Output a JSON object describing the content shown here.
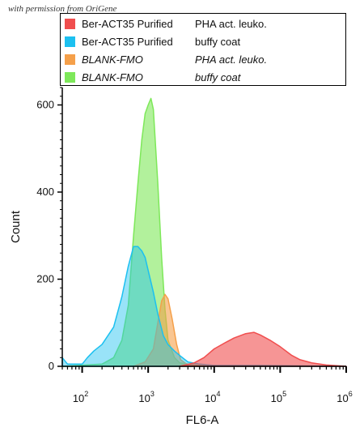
{
  "watermark": "with permission from OriGene",
  "legend": [
    {
      "sample": "Ber-ACT35  Purified",
      "condition": "PHA act. leuko.",
      "italic": false,
      "color": "#f04e4e"
    },
    {
      "sample": "Ber-ACT35  Purified",
      "condition": "buffy coat",
      "italic": false,
      "color": "#1cc0f0"
    },
    {
      "sample": "BLANK-FMO",
      "condition": "PHA act. leuko.",
      "italic": true,
      "color": "#f5a04a"
    },
    {
      "sample": "BLANK-FMO",
      "condition": "buffy coat",
      "italic": true,
      "color": "#7ee85a"
    }
  ],
  "chart_data": {
    "type": "area",
    "xlabel": "FL6-A",
    "ylabel": "Count",
    "xscale": "log",
    "xlim": [
      50,
      1000000
    ],
    "ylim": [
      0,
      640
    ],
    "x_tick_labels": [
      {
        "base": "10",
        "exp": "2",
        "value": 100
      },
      {
        "base": "10",
        "exp": "3",
        "value": 1000
      },
      {
        "base": "10",
        "exp": "4",
        "value": 10000
      },
      {
        "base": "10",
        "exp": "5",
        "value": 100000
      },
      {
        "base": "10",
        "exp": "6",
        "value": 1000000
      }
    ],
    "y_ticks": [
      0,
      200,
      400,
      600
    ],
    "legend_position": "top",
    "series": [
      {
        "name": "BLANK-FMO buffy coat",
        "color": "#7ee85a",
        "fill_opacity": 0.6,
        "points": [
          [
            50,
            0
          ],
          [
            200,
            5
          ],
          [
            300,
            20
          ],
          [
            400,
            60
          ],
          [
            500,
            140
          ],
          [
            600,
            300
          ],
          [
            700,
            420
          ],
          [
            800,
            520
          ],
          [
            900,
            580
          ],
          [
            1000,
            600
          ],
          [
            1100,
            615
          ],
          [
            1200,
            590
          ],
          [
            1400,
            420
          ],
          [
            1600,
            250
          ],
          [
            1800,
            130
          ],
          [
            2000,
            60
          ],
          [
            2500,
            20
          ],
          [
            3000,
            8
          ],
          [
            5000,
            3
          ],
          [
            8000,
            0
          ]
        ]
      },
      {
        "name": "BLANK-FMO PHA act. leuko.",
        "color": "#f5a04a",
        "fill_opacity": 0.6,
        "points": [
          [
            600,
            0
          ],
          [
            900,
            10
          ],
          [
            1200,
            40
          ],
          [
            1400,
            100
          ],
          [
            1600,
            150
          ],
          [
            1800,
            165
          ],
          [
            2000,
            155
          ],
          [
            2300,
            110
          ],
          [
            2700,
            50
          ],
          [
            3100,
            15
          ],
          [
            4000,
            3
          ],
          [
            6000,
            0
          ]
        ]
      },
      {
        "name": "Ber-ACT35 Purified buffy coat",
        "color": "#1cc0f0",
        "fill_opacity": 0.45,
        "points": [
          [
            50,
            20
          ],
          [
            60,
            5
          ],
          [
            100,
            5
          ],
          [
            120,
            20
          ],
          [
            150,
            35
          ],
          [
            200,
            50
          ],
          [
            300,
            90
          ],
          [
            400,
            160
          ],
          [
            500,
            230
          ],
          [
            600,
            275
          ],
          [
            700,
            275
          ],
          [
            800,
            265
          ],
          [
            900,
            250
          ],
          [
            1000,
            220
          ],
          [
            1200,
            170
          ],
          [
            1400,
            120
          ],
          [
            1700,
            70
          ],
          [
            2000,
            50
          ],
          [
            2500,
            35
          ],
          [
            3000,
            25
          ],
          [
            4000,
            10
          ],
          [
            6000,
            5
          ],
          [
            10000,
            2
          ],
          [
            50000,
            2
          ],
          [
            1000000,
            0
          ]
        ]
      },
      {
        "name": "Ber-ACT35 Purified PHA act. leuko.",
        "color": "#f04e4e",
        "fill_opacity": 0.6,
        "points": [
          [
            3000,
            0
          ],
          [
            5000,
            8
          ],
          [
            7000,
            20
          ],
          [
            10000,
            40
          ],
          [
            15000,
            55
          ],
          [
            20000,
            65
          ],
          [
            30000,
            75
          ],
          [
            40000,
            78
          ],
          [
            50000,
            72
          ],
          [
            70000,
            60
          ],
          [
            100000,
            45
          ],
          [
            150000,
            25
          ],
          [
            200000,
            15
          ],
          [
            300000,
            8
          ],
          [
            500000,
            3
          ],
          [
            1000000,
            0
          ]
        ]
      }
    ]
  }
}
